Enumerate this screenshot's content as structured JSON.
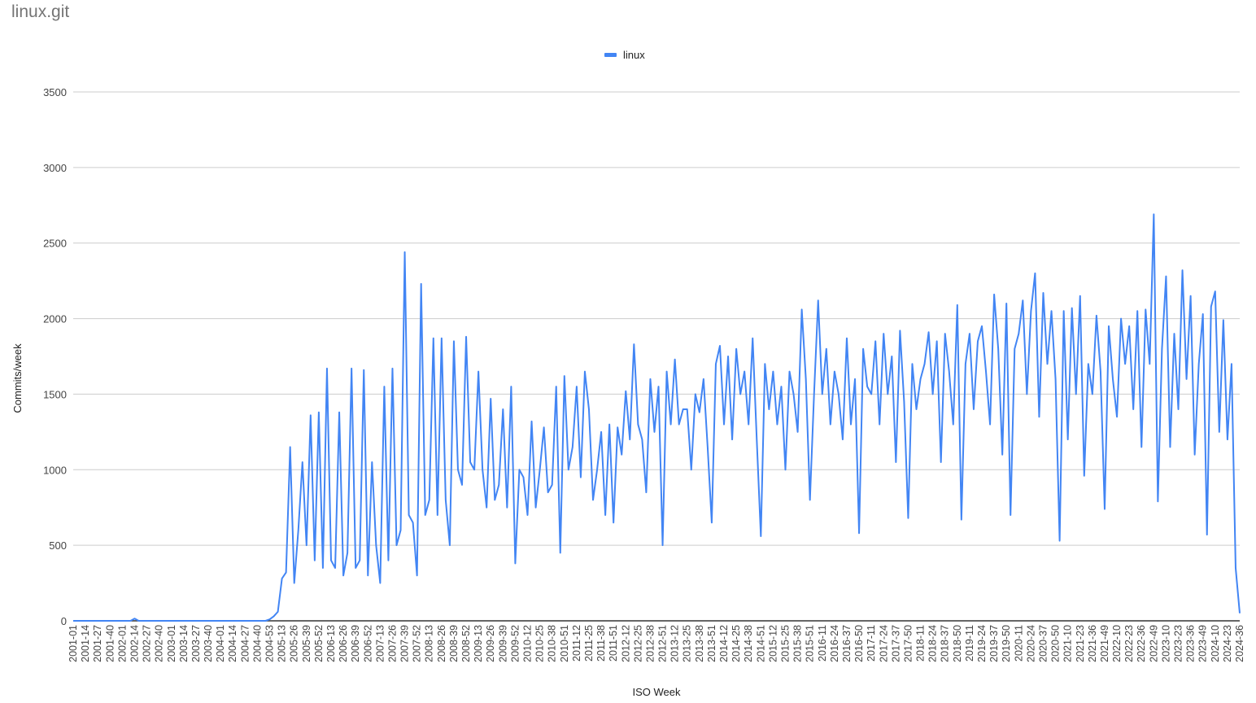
{
  "title": "linux.git",
  "chart_data": {
    "type": "line",
    "title": "linux.git",
    "xlabel": "ISO Week",
    "ylabel": "Commits/week",
    "ylim": [
      0,
      3500
    ],
    "y_ticks": [
      0,
      500,
      1000,
      1500,
      2000,
      2500,
      3000,
      3500
    ],
    "grid": true,
    "legend_position": "top",
    "x_ticks": [
      "2001-01",
      "2001-14",
      "2001-27",
      "2001-40",
      "2002-01",
      "2002-14",
      "2002-27",
      "2002-40",
      "2003-01",
      "2003-14",
      "2003-27",
      "2003-40",
      "2004-01",
      "2004-14",
      "2004-27",
      "2004-40",
      "2004-53",
      "2005-13",
      "2005-26",
      "2005-39",
      "2005-52",
      "2006-13",
      "2006-26",
      "2006-39",
      "2006-52",
      "2007-13",
      "2007-26",
      "2007-39",
      "2007-52",
      "2008-13",
      "2008-26",
      "2008-39",
      "2008-52",
      "2009-13",
      "2009-26",
      "2009-39",
      "2009-52",
      "2010-12",
      "2010-25",
      "2010-38",
      "2010-51",
      "2011-12",
      "2011-25",
      "2011-38",
      "2011-51",
      "2012-12",
      "2012-25",
      "2012-38",
      "2012-51",
      "2013-12",
      "2013-25",
      "2013-38",
      "2013-51",
      "2014-12",
      "2014-25",
      "2014-38",
      "2014-51",
      "2015-12",
      "2015-25",
      "2015-38",
      "2015-51",
      "2016-11",
      "2016-24",
      "2016-37",
      "2016-50",
      "2017-11",
      "2017-24",
      "2017-37",
      "2017-50",
      "2018-11",
      "2018-24",
      "2018-37",
      "2018-50",
      "2019-11",
      "2019-24",
      "2019-37",
      "2019-50",
      "2020-11",
      "2020-24",
      "2020-37",
      "2020-50",
      "2021-10",
      "2021-23",
      "2021-36",
      "2021-49",
      "2022-10",
      "2022-23",
      "2022-36",
      "2022-49",
      "2023-10",
      "2023-23",
      "2023-36",
      "2023-49",
      "2024-10",
      "2024-23",
      "2024-36"
    ],
    "series": [
      {
        "name": "linux",
        "color": "#4285f4",
        "values": [
          0,
          0,
          0,
          0,
          0,
          0,
          0,
          0,
          0,
          0,
          0,
          0,
          0,
          0,
          0,
          15,
          0,
          0,
          0,
          0,
          0,
          0,
          0,
          0,
          0,
          0,
          0,
          0,
          0,
          0,
          0,
          0,
          0,
          0,
          0,
          0,
          0,
          0,
          0,
          0,
          0,
          0,
          0,
          0,
          0,
          0,
          0,
          0,
          10,
          30,
          60,
          280,
          320,
          1150,
          250,
          600,
          1050,
          500,
          1360,
          400,
          1380,
          350,
          1670,
          400,
          350,
          1380,
          300,
          450,
          1670,
          350,
          400,
          1660,
          300,
          1050,
          500,
          250,
          1550,
          400,
          1670,
          500,
          600,
          2440,
          700,
          650,
          300,
          2230,
          700,
          800,
          1870,
          700,
          1870,
          800,
          500,
          1850,
          1000,
          900,
          1880,
          1050,
          1000,
          1650,
          1000,
          750,
          1470,
          800,
          900,
          1400,
          750,
          1550,
          380,
          1000,
          950,
          700,
          1320,
          750,
          1000,
          1280,
          850,
          900,
          1550,
          450,
          1620,
          1000,
          1150,
          1550,
          950,
          1650,
          1400,
          800,
          1000,
          1250,
          700,
          1300,
          650,
          1280,
          1100,
          1520,
          1200,
          1830,
          1300,
          1200,
          850,
          1600,
          1250,
          1550,
          500,
          1650,
          1300,
          1730,
          1300,
          1400,
          1400,
          1000,
          1500,
          1380,
          1600,
          1150,
          650,
          1700,
          1820,
          1300,
          1750,
          1200,
          1800,
          1500,
          1650,
          1300,
          1870,
          1200,
          560,
          1700,
          1400,
          1650,
          1300,
          1550,
          1000,
          1650,
          1500,
          1250,
          2060,
          1600,
          800,
          1500,
          2120,
          1500,
          1800,
          1300,
          1650,
          1500,
          1200,
          1870,
          1300,
          1600,
          580,
          1800,
          1550,
          1500,
          1850,
          1300,
          1900,
          1500,
          1750,
          1050,
          1920,
          1450,
          680,
          1700,
          1400,
          1600,
          1700,
          1910,
          1500,
          1850,
          1050,
          1900,
          1650,
          1300,
          2090,
          670,
          1700,
          1900,
          1400,
          1850,
          1950,
          1650,
          1300,
          2160,
          1800,
          1100,
          2100,
          700,
          1800,
          1900,
          2120,
          1500,
          2050,
          2300,
          1350,
          2170,
          1700,
          2050,
          1600,
          530,
          2050,
          1200,
          2070,
          1500,
          2150,
          960,
          1700,
          1500,
          2020,
          1650,
          740,
          1950,
          1600,
          1350,
          2000,
          1700,
          1950,
          1400,
          2050,
          1150,
          2060,
          1700,
          2690,
          790,
          1800,
          2280,
          1150,
          1900,
          1400,
          2320,
          1600,
          2150,
          1100,
          1700,
          2030,
          570,
          2080,
          2180,
          1250,
          1990,
          1200,
          1700,
          350,
          50
        ]
      }
    ]
  }
}
